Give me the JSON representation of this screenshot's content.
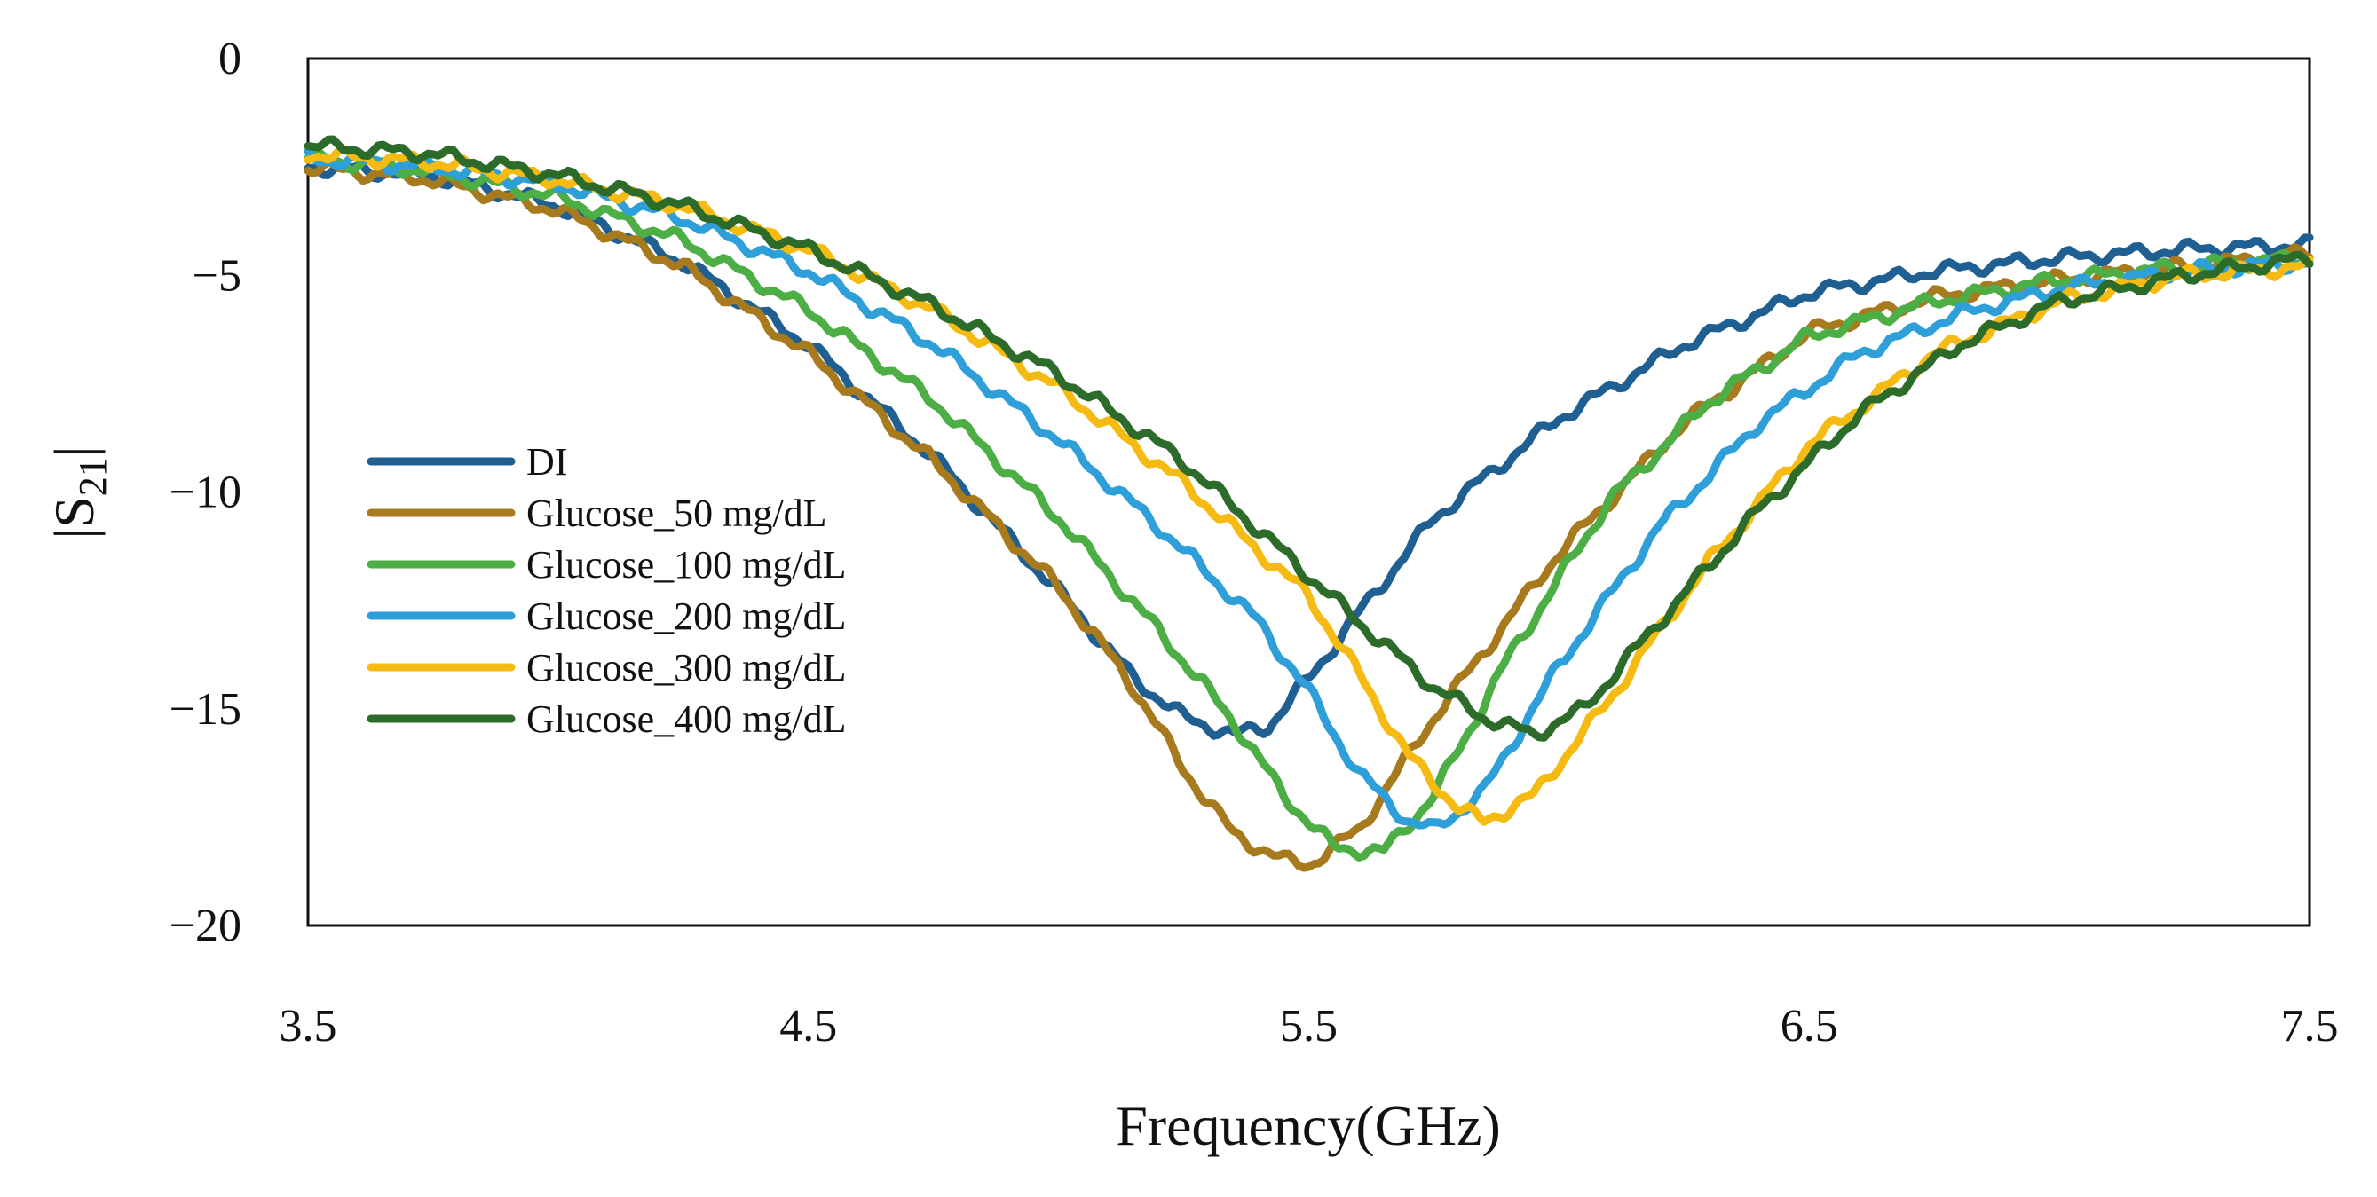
{
  "chart_data": {
    "type": "line",
    "title": "",
    "xlabel": "Frequency(GHz)",
    "ylabel": "|S21|",
    "ylabel_main": "|S",
    "ylabel_sub": "21",
    "ylabel_end": "|",
    "xlim": [
      3.5,
      7.5
    ],
    "ylim": [
      -20,
      0
    ],
    "xticks": [
      3.5,
      4.5,
      5.5,
      6.5,
      7.5
    ],
    "xtick_labels": [
      "3.5",
      "4.5",
      "5.5",
      "6.5",
      "7.5"
    ],
    "yticks": [
      0,
      -5,
      -10,
      -15,
      -20
    ],
    "ytick_labels": [
      "0",
      "−5",
      "−10",
      "−15",
      "−20"
    ],
    "grid": false,
    "legend_position": "left-center",
    "series": [
      {
        "name": "DI",
        "color": "#1f5f91",
        "x": [
          3.5,
          3.75,
          4.0,
          4.25,
          4.5,
          4.75,
          5.0,
          5.15,
          5.25,
          5.35,
          5.42,
          5.5,
          5.6,
          5.75,
          6.0,
          6.25,
          6.5,
          6.75,
          7.0,
          7.25,
          7.5
        ],
        "y": [
          -2.5,
          -2.7,
          -3.4,
          -4.7,
          -6.6,
          -9.2,
          -12.3,
          -14.3,
          -15.2,
          -15.6,
          -15.4,
          -14.3,
          -12.8,
          -10.6,
          -8.3,
          -6.6,
          -5.4,
          -4.9,
          -4.6,
          -4.4,
          -4.3
        ]
      },
      {
        "name": "Glucose_50 mg/dL",
        "color": "#a87a1e",
        "x": [
          3.5,
          3.75,
          4.0,
          4.25,
          4.5,
          4.75,
          5.0,
          5.15,
          5.25,
          5.35,
          5.45,
          5.5,
          5.6,
          5.75,
          6.0,
          6.25,
          6.5,
          6.75,
          7.0,
          7.25,
          7.5
        ],
        "y": [
          -2.5,
          -2.8,
          -3.5,
          -4.8,
          -6.8,
          -9.3,
          -12.2,
          -14.5,
          -16.4,
          -17.9,
          -18.5,
          -18.6,
          -17.8,
          -15.2,
          -11.4,
          -8.4,
          -6.3,
          -5.5,
          -5.1,
          -4.8,
          -4.5
        ]
      },
      {
        "name": "Glucose_100 mg/dL",
        "color": "#4cae45",
        "x": [
          3.5,
          3.75,
          4.0,
          4.25,
          4.5,
          4.75,
          5.0,
          5.2,
          5.35,
          5.45,
          5.55,
          5.65,
          5.75,
          5.9,
          6.1,
          6.3,
          6.5,
          6.75,
          7.0,
          7.25,
          7.5
        ],
        "y": [
          -2.3,
          -2.6,
          -3.2,
          -4.2,
          -5.8,
          -7.9,
          -10.6,
          -13.2,
          -15.3,
          -17.0,
          -18.2,
          -18.3,
          -17.0,
          -13.8,
          -10.2,
          -7.9,
          -6.4,
          -5.6,
          -5.1,
          -4.8,
          -4.6
        ]
      },
      {
        "name": "Glucose_200 mg/dL",
        "color": "#2e9fd8",
        "x": [
          3.5,
          3.75,
          4.0,
          4.25,
          4.5,
          4.75,
          5.0,
          5.2,
          5.4,
          5.5,
          5.6,
          5.7,
          5.75,
          5.85,
          6.0,
          6.2,
          6.4,
          6.6,
          6.8,
          7.0,
          7.25,
          7.5
        ],
        "y": [
          -2.3,
          -2.5,
          -2.9,
          -3.7,
          -4.9,
          -6.6,
          -8.8,
          -10.8,
          -13.0,
          -14.6,
          -16.5,
          -17.6,
          -17.8,
          -16.9,
          -14.0,
          -10.8,
          -8.4,
          -6.8,
          -5.9,
          -5.3,
          -4.9,
          -4.7
        ]
      },
      {
        "name": "Glucose_300 mg/dL",
        "color": "#f6bb12",
        "x": [
          3.5,
          3.75,
          4.0,
          4.25,
          4.5,
          4.75,
          5.0,
          5.25,
          5.5,
          5.6,
          5.7,
          5.8,
          5.85,
          5.95,
          6.1,
          6.3,
          6.5,
          6.75,
          7.0,
          7.25,
          7.5
        ],
        "y": [
          -2.2,
          -2.4,
          -2.8,
          -3.4,
          -4.4,
          -5.8,
          -7.6,
          -9.8,
          -12.4,
          -14.2,
          -16.1,
          -17.3,
          -17.6,
          -17.0,
          -14.8,
          -11.6,
          -8.9,
          -6.8,
          -5.6,
          -5.0,
          -4.8
        ]
      },
      {
        "name": "Glucose_400 mg/dL",
        "color": "#2d6b2a",
        "x": [
          3.5,
          3.75,
          4.0,
          4.25,
          4.5,
          4.75,
          5.0,
          5.25,
          5.45,
          5.6,
          5.75,
          5.85,
          5.95,
          6.05,
          6.2,
          6.4,
          6.6,
          6.8,
          7.0,
          7.25,
          7.5
        ],
        "y": [
          -2.0,
          -2.2,
          -2.7,
          -3.4,
          -4.4,
          -5.7,
          -7.3,
          -9.3,
          -11.4,
          -13.0,
          -14.5,
          -15.2,
          -15.6,
          -15.0,
          -13.0,
          -10.4,
          -8.2,
          -6.6,
          -5.6,
          -5.0,
          -4.6
        ]
      }
    ]
  }
}
